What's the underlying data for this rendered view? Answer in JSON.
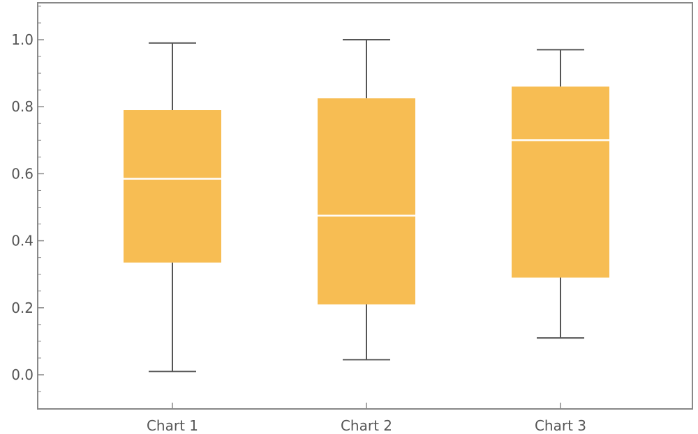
{
  "chart_data": {
    "type": "boxplot",
    "title": "",
    "xlabel": "",
    "ylabel": "",
    "categories": [
      "Chart 1",
      "Chart 2",
      "Chart 3"
    ],
    "boxes": [
      {
        "min": 0.01,
        "q1": 0.335,
        "median": 0.585,
        "q3": 0.79,
        "max": 0.99
      },
      {
        "min": 0.045,
        "q1": 0.21,
        "median": 0.475,
        "q3": 0.825,
        "max": 1.0
      },
      {
        "min": 0.11,
        "q1": 0.29,
        "median": 0.7,
        "q3": 0.86,
        "max": 0.97
      }
    ],
    "ylim": [
      -0.1,
      1.1
    ],
    "y_ticks": [
      "0.0",
      "0.2",
      "0.4",
      "0.6",
      "0.8",
      "1.0"
    ],
    "grid": false,
    "colors": {
      "box_fill": "#f7bd53",
      "median_line": "#ffffff",
      "whisker": "#555555",
      "frame": "#888888",
      "tick_text": "#555555"
    }
  }
}
